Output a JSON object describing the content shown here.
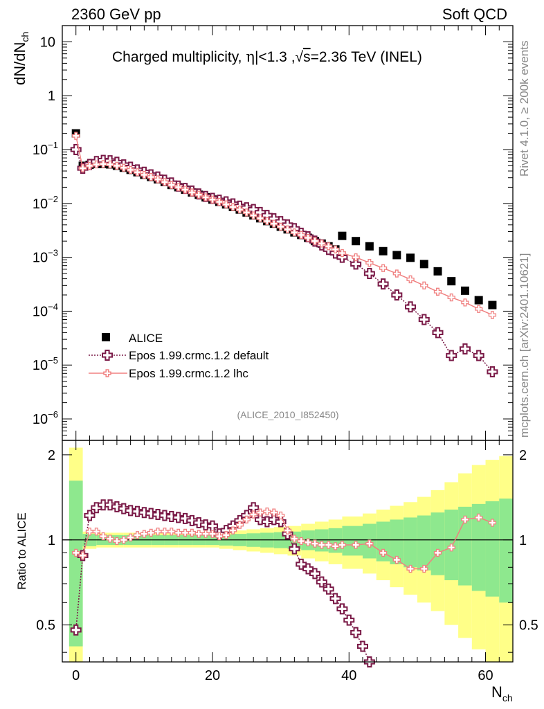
{
  "header": {
    "left": "2360 GeV pp",
    "right": "Soft QCD"
  },
  "side_labels": {
    "rivet": "Rivet 4.1.0, ≥ 200k events",
    "mcplots": "mcplots.cern.ch [arXiv:2401.10621]"
  },
  "analysis_tag": "(ALICE_2010_I852450)",
  "main_ylabel": "dN/dN",
  "main_ylabel_sub": "ch",
  "ratio_ylabel": "Ratio to ALICE",
  "xlabel": "N",
  "xlabel_sub": "ch",
  "colors": {
    "data": "#000000",
    "default": "#7a1a47",
    "lhc": "#f08080",
    "band_inner": "#8ee88e",
    "band_outer": "#ffff88"
  },
  "chart_data": [
    {
      "type": "scatter",
      "title": "Charged multiplicity, |η|<1.3 ,√s=2.36 TeV (INEL)",
      "title_parts": {
        "prefix": "Charged multiplicity, ",
        "eta": "η",
        "cut": "|<1.3 ,",
        "sqrt": "√",
        "s": "s",
        "suffix": "=2.36 TeV (INEL)"
      },
      "xlabel": "N_ch",
      "ylabel": "dN/dN_ch",
      "yscale": "log",
      "xlim": [
        -2,
        64
      ],
      "ylim": [
        4e-07,
        20
      ],
      "ytick_labels": [
        {
          "value": 10,
          "base": "10",
          "exp": ""
        },
        {
          "value": 1,
          "base": "1",
          "exp": ""
        },
        {
          "value": 0.1,
          "base": "10",
          "exp": "−1"
        },
        {
          "value": 0.01,
          "base": "10",
          "exp": "−2"
        },
        {
          "value": 0.001,
          "base": "10",
          "exp": "−3"
        },
        {
          "value": 0.0001,
          "base": "10",
          "exp": "−4"
        },
        {
          "value": 1e-05,
          "base": "10",
          "exp": "−5"
        },
        {
          "value": 1e-06,
          "base": "10",
          "exp": "−6"
        }
      ],
      "legend": [
        "ALICE",
        "Epos 1.99.crmc.1.2 default",
        "Epos 1.99.crmc.1.2 lhc"
      ],
      "legend_position": "lower-left",
      "series": [
        {
          "name": "ALICE",
          "style": "square",
          "x": [
            0,
            1,
            2,
            3,
            4,
            5,
            6,
            7,
            8,
            9,
            10,
            11,
            12,
            13,
            14,
            15,
            16,
            17,
            18,
            19,
            20,
            21,
            22,
            23,
            24,
            25,
            26,
            27,
            28,
            29,
            30,
            31,
            32,
            33,
            34,
            35,
            36,
            37,
            38,
            39,
            41,
            43,
            45,
            47,
            49,
            51,
            53,
            55,
            57,
            59,
            61
          ],
          "y": [
            0.2,
            0.05,
            0.052,
            0.054,
            0.054,
            0.053,
            0.05,
            0.046,
            0.042,
            0.038,
            0.034,
            0.031,
            0.028,
            0.025,
            0.022,
            0.02,
            0.018,
            0.016,
            0.0145,
            0.013,
            0.0118,
            0.0107,
            0.0096,
            0.0086,
            0.0077,
            0.0068,
            0.006,
            0.0053,
            0.0047,
            0.0042,
            0.0037,
            0.0033,
            0.0029,
            0.0026,
            0.0023,
            0.002,
            0.0018,
            0.0016,
            0.0014,
            0.0025,
            0.002,
            0.0016,
            0.0013,
            0.0011,
            0.00098,
            0.00075,
            0.00055,
            0.00036,
            0.00024,
            0.00016,
            0.00013
          ]
        },
        {
          "name": "Epos 1.99.crmc.1.2 default",
          "style": "open-cross",
          "x": [
            0,
            1,
            2,
            3,
            4,
            5,
            6,
            7,
            8,
            9,
            10,
            11,
            12,
            13,
            14,
            15,
            16,
            17,
            18,
            19,
            20,
            21,
            22,
            23,
            24,
            25,
            26,
            27,
            28,
            29,
            30,
            31,
            32,
            33,
            34,
            35,
            36,
            37,
            38,
            39,
            41,
            43,
            45,
            47,
            49,
            51,
            53,
            55,
            57,
            59,
            61
          ],
          "y": [
            0.1,
            0.045,
            0.053,
            0.06,
            0.063,
            0.062,
            0.058,
            0.052,
            0.047,
            0.042,
            0.038,
            0.034,
            0.031,
            0.027,
            0.024,
            0.021,
            0.019,
            0.017,
            0.015,
            0.0135,
            0.0124,
            0.0115,
            0.0107,
            0.0098,
            0.0089,
            0.0083,
            0.0077,
            0.0068,
            0.006,
            0.0052,
            0.0046,
            0.004,
            0.0034,
            0.0028,
            0.0024,
            0.002,
            0.0017,
            0.0014,
            0.0012,
            0.001,
            0.00075,
            0.0005,
            0.00032,
            0.0002,
            0.00012,
            7e-05,
            4e-05,
            1.5e-05,
            2e-05,
            1.5e-05,
            7.5e-06
          ]
        },
        {
          "name": "Epos 1.99.crmc.1.2 lhc",
          "style": "line-cross",
          "x": [
            0,
            1,
            2,
            3,
            4,
            5,
            6,
            7,
            8,
            9,
            10,
            11,
            12,
            13,
            14,
            15,
            16,
            17,
            18,
            19,
            20,
            21,
            22,
            23,
            24,
            25,
            26,
            27,
            28,
            29,
            30,
            31,
            32,
            33,
            34,
            35,
            36,
            37,
            38,
            39,
            41,
            43,
            45,
            47,
            49,
            51,
            53,
            55,
            57,
            59,
            61
          ],
          "y": [
            0.18,
            0.045,
            0.05,
            0.053,
            0.054,
            0.053,
            0.05,
            0.046,
            0.042,
            0.038,
            0.034,
            0.031,
            0.028,
            0.025,
            0.022,
            0.02,
            0.018,
            0.016,
            0.0145,
            0.013,
            0.0118,
            0.0107,
            0.0096,
            0.0086,
            0.0077,
            0.0068,
            0.006,
            0.0053,
            0.0047,
            0.0042,
            0.0037,
            0.0033,
            0.0029,
            0.0026,
            0.0023,
            0.002,
            0.0018,
            0.0016,
            0.0014,
            0.0012,
            0.001,
            0.00079,
            0.00063,
            0.0005,
            0.00039,
            0.0003,
            0.00023,
            0.00018,
            0.000145,
            0.00011,
            8.5e-05
          ]
        }
      ]
    },
    {
      "type": "line",
      "ylabel": "Ratio to ALICE",
      "xlabel": "N_ch",
      "xlim": [
        -2,
        64
      ],
      "ylim": [
        0.37,
        2.25
      ],
      "ytick_labels": [
        "2",
        "1",
        "0.5"
      ],
      "ytick_values": [
        2,
        1,
        0.5
      ],
      "xtick_labels": [
        "0",
        "20",
        "40",
        "60"
      ],
      "xtick_values": [
        0,
        20,
        40,
        60
      ],
      "reference_line": 1,
      "series": [
        {
          "name": "Epos 1.99.crmc.1.2 default",
          "style": "open-cross",
          "x": [
            0,
            1,
            2,
            3,
            4,
            5,
            6,
            7,
            8,
            9,
            10,
            11,
            12,
            13,
            14,
            15,
            16,
            17,
            18,
            19,
            20,
            21,
            22,
            23,
            24,
            25,
            26,
            27,
            28,
            29,
            30,
            31,
            32,
            33,
            34,
            35,
            36,
            37,
            38,
            39,
            40,
            41,
            42,
            43
          ],
          "y": [
            0.48,
            0.88,
            1.22,
            1.3,
            1.33,
            1.33,
            1.31,
            1.29,
            1.27,
            1.26,
            1.25,
            1.24,
            1.23,
            1.22,
            1.21,
            1.2,
            1.19,
            1.17,
            1.15,
            1.13,
            1.12,
            1.05,
            1.08,
            1.12,
            1.17,
            1.22,
            1.3,
            1.18,
            1.16,
            1.18,
            1.16,
            1.05,
            0.93,
            0.82,
            0.79,
            0.76,
            0.71,
            0.67,
            0.62,
            0.57,
            0.52,
            0.47,
            0.42,
            0.37
          ]
        },
        {
          "name": "Epos 1.99.crmc.1.2 lhc",
          "style": "line-cross",
          "x": [
            0,
            1,
            2,
            3,
            4,
            5,
            6,
            7,
            8,
            9,
            10,
            11,
            12,
            13,
            14,
            15,
            16,
            17,
            18,
            19,
            20,
            21,
            22,
            23,
            24,
            25,
            26,
            27,
            28,
            29,
            30,
            31,
            32,
            33,
            34,
            35,
            36,
            37,
            38,
            39,
            41,
            43,
            45,
            47,
            49,
            51,
            53,
            55,
            57,
            59,
            61
          ],
          "y": [
            0.9,
            0.88,
            1.07,
            1.07,
            1.03,
            1.01,
            0.99,
            1.0,
            1.02,
            1.04,
            1.05,
            1.06,
            1.07,
            1.07,
            1.07,
            1.06,
            1.06,
            1.06,
            1.05,
            1.05,
            1.05,
            1.03,
            1.04,
            1.08,
            1.13,
            1.18,
            1.23,
            1.25,
            1.26,
            1.25,
            1.22,
            1.08,
            1.01,
            0.99,
            0.98,
            0.97,
            0.96,
            0.96,
            0.95,
            0.96,
            0.96,
            0.97,
            0.9,
            0.85,
            0.79,
            0.79,
            0.9,
            0.94,
            1.18,
            1.2,
            1.15
          ]
        }
      ],
      "uncertainty_bands": {
        "x_edges": [
          -1,
          1,
          3,
          5,
          7,
          9,
          11,
          13,
          15,
          17,
          19,
          21,
          23,
          25,
          27,
          29,
          31,
          33,
          35,
          37,
          39,
          42,
          44,
          46,
          48,
          50,
          52,
          54,
          56,
          58,
          60,
          62,
          64
        ],
        "inner": [
          [
            0.42,
            1.62
          ],
          [
            0.95,
            1.05
          ],
          [
            0.96,
            1.04
          ],
          [
            0.96,
            1.04
          ],
          [
            0.96,
            1.04
          ],
          [
            0.96,
            1.04
          ],
          [
            0.96,
            1.04
          ],
          [
            0.96,
            1.04
          ],
          [
            0.96,
            1.04
          ],
          [
            0.96,
            1.04
          ],
          [
            0.96,
            1.04
          ],
          [
            0.955,
            1.045
          ],
          [
            0.95,
            1.05
          ],
          [
            0.945,
            1.055
          ],
          [
            0.94,
            1.06
          ],
          [
            0.935,
            1.065
          ],
          [
            0.93,
            1.07
          ],
          [
            0.92,
            1.08
          ],
          [
            0.91,
            1.09
          ],
          [
            0.9,
            1.1
          ],
          [
            0.88,
            1.12
          ],
          [
            0.86,
            1.14
          ],
          [
            0.84,
            1.16
          ],
          [
            0.82,
            1.18
          ],
          [
            0.8,
            1.2
          ],
          [
            0.78,
            1.22
          ],
          [
            0.75,
            1.25
          ],
          [
            0.72,
            1.28
          ],
          [
            0.69,
            1.31
          ],
          [
            0.66,
            1.34
          ],
          [
            0.63,
            1.37
          ],
          [
            0.6,
            1.4
          ]
        ],
        "outer": [
          [
            0.37,
            2.12
          ],
          [
            0.93,
            1.07
          ],
          [
            0.94,
            1.06
          ],
          [
            0.94,
            1.06
          ],
          [
            0.94,
            1.06
          ],
          [
            0.94,
            1.06
          ],
          [
            0.94,
            1.06
          ],
          [
            0.94,
            1.06
          ],
          [
            0.94,
            1.06
          ],
          [
            0.94,
            1.06
          ],
          [
            0.94,
            1.06
          ],
          [
            0.93,
            1.07
          ],
          [
            0.92,
            1.08
          ],
          [
            0.91,
            1.09
          ],
          [
            0.9,
            1.1
          ],
          [
            0.89,
            1.11
          ],
          [
            0.88,
            1.12
          ],
          [
            0.86,
            1.14
          ],
          [
            0.84,
            1.16
          ],
          [
            0.82,
            1.18
          ],
          [
            0.79,
            1.21
          ],
          [
            0.76,
            1.24
          ],
          [
            0.72,
            1.28
          ],
          [
            0.68,
            1.32
          ],
          [
            0.64,
            1.36
          ],
          [
            0.6,
            1.42
          ],
          [
            0.56,
            1.5
          ],
          [
            0.5,
            1.6
          ],
          [
            0.45,
            1.72
          ],
          [
            0.41,
            1.84
          ],
          [
            0.37,
            1.92
          ],
          [
            0.37,
            1.98
          ]
        ]
      }
    }
  ]
}
